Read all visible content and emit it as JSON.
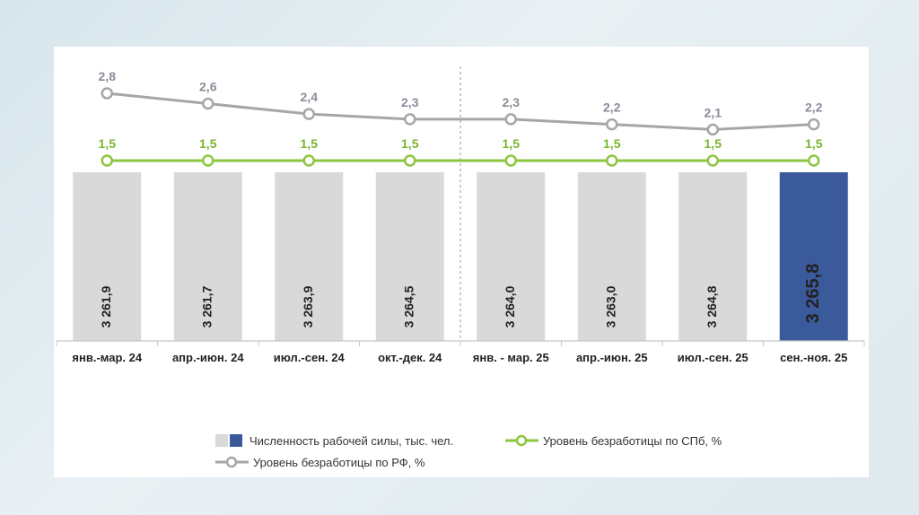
{
  "chart_data": {
    "type": "bar",
    "categories": [
      "янв.-мар. 24",
      "апр.-июн. 24",
      "июл.-сен. 24",
      "окт.-дек. 24",
      "янв. - мар. 25",
      "апр.-июн. 25",
      "июл.-сен. 25",
      "сен.-ноя. 25"
    ],
    "bars": {
      "name": "Численность рабочей силы, тыс. чел.",
      "values": [
        3261.9,
        3261.7,
        3263.9,
        3264.5,
        3264.0,
        3263.0,
        3264.8,
        3265.8
      ],
      "labels": [
        "3 261,9",
        "3 261,7",
        "3 263,9",
        "3 264,5",
        "3 264,0",
        "3 263,0",
        "3 264,8",
        "3 265,8"
      ],
      "colors": [
        "#d9d9d9",
        "#d9d9d9",
        "#d9d9d9",
        "#d9d9d9",
        "#d9d9d9",
        "#d9d9d9",
        "#d9d9d9",
        "#3a5a9b"
      ]
    },
    "lines": [
      {
        "name": "Уровень безработицы по РФ, %",
        "values": [
          2.8,
          2.6,
          2.4,
          2.3,
          2.3,
          2.2,
          2.1,
          2.2
        ],
        "labels": [
          "2,8",
          "2,6",
          "2,4",
          "2,3",
          "2,3",
          "2,2",
          "2,1",
          "2,2"
        ],
        "color": "#a6a6a6",
        "label_color": "#8c8c9a"
      },
      {
        "name": "Уровень безработицы по СПб, %",
        "values": [
          1.5,
          1.5,
          1.5,
          1.5,
          1.5,
          1.5,
          1.5,
          1.5
        ],
        "labels": [
          "1,5",
          "1,5",
          "1,5",
          "1,5",
          "1,5",
          "1,5",
          "1,5",
          "1,5"
        ],
        "color": "#8cc63f",
        "label_color": "#7ab530"
      }
    ],
    "legend": {
      "placement": "bottom",
      "bar_colors": [
        "#d9d9d9",
        "#3a5a9b"
      ],
      "items": [
        "Численность рабочей силы, тыс. чел.",
        "Уровень безработицы по СПб, %",
        "Уровень безработицы по РФ, %"
      ]
    }
  }
}
